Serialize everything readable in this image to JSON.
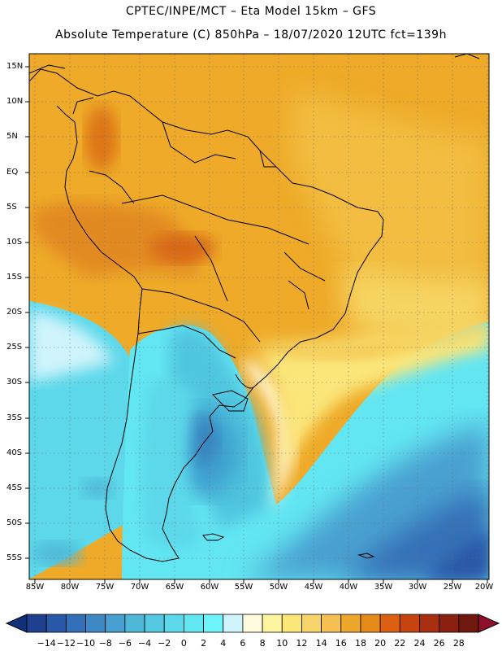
{
  "title_line1": "CPTEC/INPE/MCT –  Eta Model 15km – GFS",
  "title_line2": "Absolute Temperature (C) 850hPa – 18/07/2020 12UTC fct=139h",
  "lat_labels": [
    "15N",
    "10N",
    "5N",
    "EQ",
    "5S",
    "10S",
    "15S",
    "20S",
    "25S",
    "30S",
    "35S",
    "40S",
    "45S",
    "50S",
    "55S"
  ],
  "lon_labels": [
    "85W",
    "80W",
    "75W",
    "70W",
    "65W",
    "60W",
    "55W",
    "50W",
    "45W",
    "40W",
    "35W",
    "30W",
    "25W",
    "20W"
  ],
  "colorbar": {
    "labels": [
      "−14",
      "−12",
      "−10",
      "−8",
      "−6",
      "−4",
      "−2",
      "0",
      "2",
      "4",
      "6",
      "8",
      "10",
      "12",
      "14",
      "16",
      "18",
      "20",
      "22",
      "24",
      "26",
      "28"
    ],
    "colors": [
      "#1f3f8f",
      "#2a58a8",
      "#3470b8",
      "#3e88c4",
      "#48a0d0",
      "#4fb8d8",
      "#55c8e2",
      "#5cd8ea",
      "#62e6f2",
      "#6ff4fb",
      "#d0f4fc",
      "#fffbdf",
      "#fdf5a0",
      "#fbe67a",
      "#f8d56a",
      "#f4c152",
      "#eda72c",
      "#e78a1c",
      "#dc6012",
      "#c64410",
      "#a83010",
      "#8a200f",
      "#6e180f"
    ],
    "under_color": "#12307a",
    "over_color": "#8e0f2a"
  },
  "map": {
    "land_border_color": "#000000",
    "grid_style": "dotted"
  }
}
